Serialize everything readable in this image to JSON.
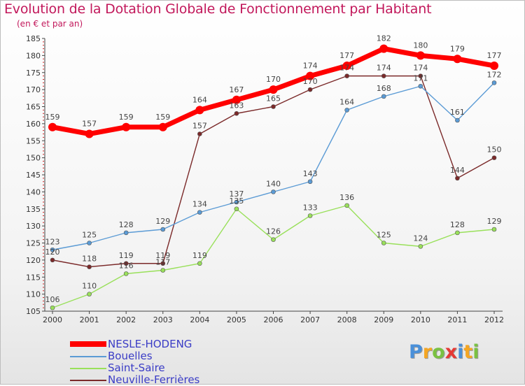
{
  "chart_data": {
    "type": "line",
    "title": "Evolution de la Dotation Globale de Fonctionnement par Habitant",
    "subtitle": "(en € et par an)",
    "xlabel": "",
    "ylabel": "",
    "ylim": [
      105,
      185
    ],
    "yticks": [
      105,
      110,
      115,
      120,
      125,
      130,
      135,
      140,
      145,
      150,
      155,
      160,
      165,
      170,
      175,
      180,
      185
    ],
    "categories": [
      "2000",
      "2001",
      "2002",
      "2003",
      "2004",
      "2005",
      "2006",
      "2007",
      "2008",
      "2009",
      "2010",
      "2011",
      "2012"
    ],
    "grid": false,
    "legend_position": "bottom-left",
    "series": [
      {
        "name": "NESLE-HODENG",
        "color": "#ff0000",
        "values": [
          159,
          157,
          159,
          159,
          164,
          167,
          170,
          174,
          177,
          182,
          180,
          179,
          177
        ]
      },
      {
        "name": "Bouelles",
        "color": "#5b9bd5",
        "values": [
          123,
          125,
          128,
          129,
          134,
          137,
          140,
          143,
          164,
          168,
          171,
          161,
          172
        ]
      },
      {
        "name": "Saint-Saire",
        "color": "#99e05a",
        "values": [
          106,
          110,
          116,
          117,
          119,
          135,
          126,
          133,
          136,
          125,
          124,
          128,
          129
        ]
      },
      {
        "name": "Neuville-Ferrières",
        "color": "#7b2a2a",
        "values": [
          120,
          118,
          119,
          119,
          157,
          163,
          165,
          170,
          174,
          174,
          174,
          144,
          150
        ]
      }
    ]
  },
  "logo": {
    "letters": [
      {
        "ch": "P",
        "color": "#4a90d9"
      },
      {
        "ch": "r",
        "color": "#f5a623"
      },
      {
        "ch": "o",
        "color": "#7ac142"
      },
      {
        "ch": "x",
        "color": "#e53935"
      },
      {
        "ch": "i",
        "color": "#4a90d9"
      },
      {
        "ch": "t",
        "color": "#f5a623"
      },
      {
        "ch": "i",
        "color": "#7ac142"
      }
    ]
  }
}
